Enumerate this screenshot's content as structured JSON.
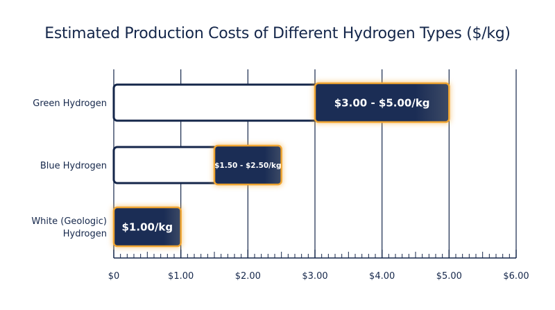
{
  "chart_data": {
    "type": "bar",
    "title": "Estimated Production Costs of Different Hydrogen Types ($/kg)",
    "categories": [
      "Green Hydrogen",
      "Blue Hydrogen",
      "White (Geologic) Hydrogen"
    ],
    "category_lines": [
      [
        "Green Hydrogen"
      ],
      [
        "Blue Hydrogen"
      ],
      [
        "White (Geologic)",
        "Hydrogen"
      ]
    ],
    "ranges": [
      {
        "low": 3.0,
        "high": 5.0,
        "label": "$3.00 - $5.00/kg"
      },
      {
        "low": 1.5,
        "high": 2.5,
        "label": "$1.50 - $2.50/kg"
      },
      {
        "low": 0.0,
        "high": 1.0,
        "label": "$1.00/kg"
      }
    ],
    "xlim": [
      0,
      6
    ],
    "xticks": [
      0,
      1,
      2,
      3,
      4,
      5,
      6
    ],
    "xtick_labels": [
      "$0",
      "$1.00",
      "$2.00",
      "$3.00",
      "$4.00",
      "$5.00",
      "$6.00"
    ],
    "minor_ticks_per_major": 10,
    "grid": true,
    "colors": {
      "text": "#14264a",
      "bar_fill": "#1b2d55",
      "bar_fill_light": "#3c4a66",
      "bar_glow": "#f0a531",
      "outline": "#14264a",
      "grid": "#14264a"
    }
  }
}
